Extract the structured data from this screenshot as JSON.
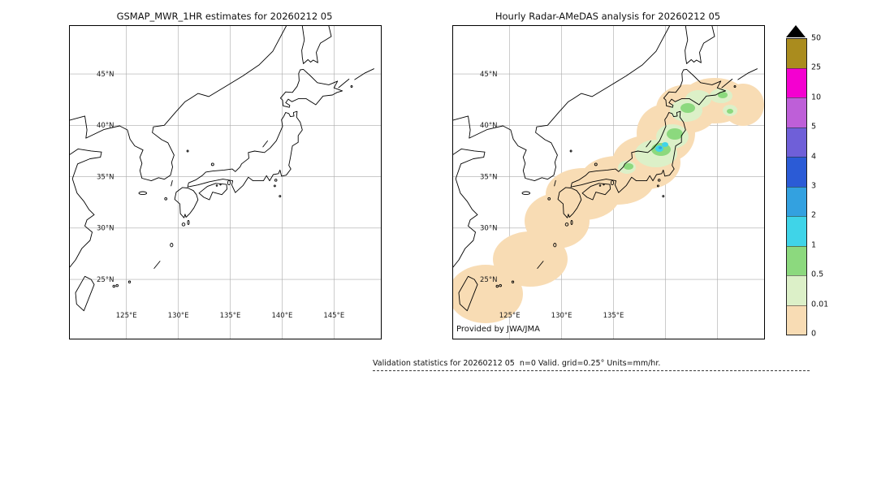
{
  "left_panel": {
    "title": "GSMAP_MWR_1HR estimates for 20260212 05",
    "lat_labels": [
      "45°N",
      "40°N",
      "35°N",
      "30°N",
      "25°N"
    ],
    "lon_labels": [
      "125°E",
      "130°E",
      "135°E",
      "140°E",
      "145°E"
    ]
  },
  "right_panel": {
    "title": "Hourly Radar-AMeDAS analysis for 20260212 05",
    "lat_labels": [
      "45°N",
      "40°N",
      "35°N",
      "30°N",
      "25°N"
    ],
    "lon_labels": [
      "125°E",
      "130°E",
      "135°E"
    ],
    "credit": "Provided by JWA/JMA"
  },
  "colorbar": {
    "values_top_to_bottom": [
      "50",
      "25",
      "10",
      "5",
      "4",
      "3",
      "2",
      "1",
      "0.5",
      "0.01",
      "0"
    ],
    "colors_top_to_bottom": [
      "#aa8c1e",
      "#f400d0",
      "#be5fd8",
      "#6f5fd8",
      "#2b5bd6",
      "#33a1e0",
      "#3fd4e8",
      "#8cd97e",
      "#dcf0c8",
      "#f8dcb4"
    ],
    "overflow_color": "#000000"
  },
  "footer": {
    "text": "Validation statistics for 20260212 05  n=0 Valid. grid=0.25° Units=mm/hr."
  },
  "overlay_summary": {
    "description": "Radar-AMeDAS precipitation shading along the Japanese archipelago",
    "regions": [
      {
        "area": "Ryukyu Islands through Kyushu and western Honshu",
        "category_mm_hr": "0–0.01"
      },
      {
        "area": "Central and northern Honshu",
        "category_mm_hr": "0.01–1, locally 1–3"
      },
      {
        "area": "Hokkaido and Pacific side of Tohoku",
        "category_mm_hr": "0.01–1"
      }
    ]
  }
}
